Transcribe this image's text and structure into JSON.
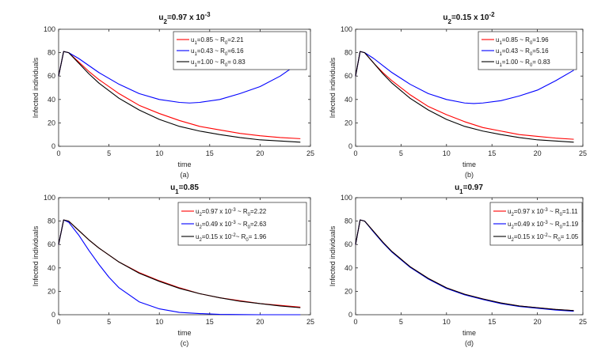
{
  "figure_caption_labels": [
    "(a)",
    "(b)",
    "(c)",
    "(d)"
  ],
  "chart_data": [
    {
      "type": "line",
      "panel_label": "(a)",
      "title": {
        "base": "u",
        "sub": "2",
        "rest": "=0.97 x 10",
        "sup": "-3"
      },
      "xlabel": "time",
      "ylabel": "Infected individuals",
      "xlim": [
        0,
        25
      ],
      "ylim": [
        0,
        100
      ],
      "xticks": [
        0,
        5,
        10,
        15,
        20,
        25
      ],
      "yticks": [
        0,
        20,
        40,
        60,
        80,
        100
      ],
      "grid": false,
      "legend_position": "top-right",
      "series": [
        {
          "color": "#ff0000",
          "legend": [
            [
              "u",
              ""
            ],
            [
              "1",
              "sub"
            ],
            [
              "=0.85 ~ R",
              ""
            ],
            [
              "0",
              "sub"
            ],
            [
              "=2.21",
              ""
            ]
          ],
          "x": [
            0,
            0.5,
            1,
            2,
            3,
            4,
            6,
            8,
            10,
            12,
            14,
            16,
            18,
            20,
            22,
            24
          ],
          "y": [
            60,
            81,
            80,
            72,
            64,
            57,
            45,
            35,
            28,
            22,
            17,
            14,
            11,
            9,
            7.5,
            6.5
          ]
        },
        {
          "color": "#0000ff",
          "legend": [
            [
              "u",
              ""
            ],
            [
              "1",
              "sub"
            ],
            [
              "=0.43 ~ R",
              ""
            ],
            [
              "0",
              "sub"
            ],
            [
              "=6.16",
              ""
            ]
          ],
          "x": [
            0,
            0.5,
            1,
            2,
            3,
            4,
            6,
            8,
            10,
            12,
            13,
            14,
            16,
            18,
            20,
            22,
            24
          ],
          "y": [
            60,
            81,
            80,
            75,
            69,
            63,
            53,
            45,
            40,
            37.5,
            37,
            37.5,
            40,
            45,
            51,
            60,
            72
          ]
        },
        {
          "color": "#000000",
          "legend": [
            [
              "u",
              ""
            ],
            [
              "1",
              "sub"
            ],
            [
              "=1.00 ~ R",
              ""
            ],
            [
              "0",
              "sub"
            ],
            [
              "= 0.83",
              ""
            ]
          ],
          "x": [
            0,
            0.5,
            1,
            2,
            3,
            4,
            6,
            8,
            10,
            12,
            14,
            16,
            18,
            20,
            22,
            24
          ],
          "y": [
            60,
            81,
            80,
            71,
            62,
            54,
            41,
            31,
            23,
            17,
            13,
            10,
            7.5,
            5.5,
            4.5,
            3.5
          ]
        }
      ]
    },
    {
      "type": "line",
      "panel_label": "(b)",
      "title": {
        "base": "u",
        "sub": "2",
        "rest": "=0.15 x 10",
        "sup": "-2"
      },
      "xlabel": "time",
      "ylabel": "Infected individuals",
      "xlim": [
        0,
        25
      ],
      "ylim": [
        0,
        100
      ],
      "xticks": [
        0,
        5,
        10,
        15,
        20,
        25
      ],
      "yticks": [
        0,
        20,
        40,
        60,
        80,
        100
      ],
      "grid": false,
      "legend_position": "top-right",
      "series": [
        {
          "color": "#ff0000",
          "legend": [
            [
              "u",
              ""
            ],
            [
              "1",
              "sub"
            ],
            [
              "=0.85 ~ R",
              ""
            ],
            [
              "0",
              "sub"
            ],
            [
              "=1.96",
              ""
            ]
          ],
          "x": [
            0,
            0.5,
            1,
            2,
            3,
            4,
            6,
            8,
            10,
            12,
            14,
            16,
            18,
            20,
            22,
            24
          ],
          "y": [
            60,
            81,
            80,
            71,
            63,
            56,
            44,
            34,
            27,
            21,
            16,
            13,
            10,
            8.5,
            7,
            6
          ]
        },
        {
          "color": "#0000ff",
          "legend": [
            [
              "u",
              ""
            ],
            [
              "1",
              "sub"
            ],
            [
              "=0.43 ~ R",
              ""
            ],
            [
              "0",
              "sub"
            ],
            [
              "=5.16",
              ""
            ]
          ],
          "x": [
            0,
            0.5,
            1,
            2,
            3,
            4,
            6,
            8,
            10,
            12,
            13,
            14,
            16,
            18,
            20,
            22,
            24
          ],
          "y": [
            60,
            81,
            80,
            75,
            69,
            63,
            53,
            45,
            40,
            37,
            36.5,
            37,
            39,
            43,
            48,
            56,
            65
          ]
        },
        {
          "color": "#000000",
          "legend": [
            [
              "u",
              ""
            ],
            [
              "1",
              "sub"
            ],
            [
              "=1.00 ~ R",
              ""
            ],
            [
              "0",
              "sub"
            ],
            [
              "= 0.83",
              ""
            ]
          ],
          "x": [
            0,
            0.5,
            1,
            2,
            3,
            4,
            6,
            8,
            10,
            12,
            14,
            16,
            18,
            20,
            22,
            24
          ],
          "y": [
            60,
            81,
            80,
            71,
            62,
            54,
            41,
            31,
            23,
            17,
            13,
            10,
            7.5,
            5.5,
            4.5,
            3.5
          ]
        }
      ]
    },
    {
      "type": "line",
      "panel_label": "(c)",
      "title": {
        "base": "u",
        "sub": "1",
        "rest": "=0.85",
        "sup": ""
      },
      "xlabel": "time",
      "ylabel": "Infected individuals",
      "xlim": [
        0,
        25
      ],
      "ylim": [
        0,
        100
      ],
      "xticks": [
        0,
        5,
        10,
        15,
        20,
        25
      ],
      "yticks": [
        0,
        20,
        40,
        60,
        80,
        100
      ],
      "grid": false,
      "legend_position": "top-right",
      "series": [
        {
          "color": "#ff0000",
          "legend": [
            [
              "u",
              ""
            ],
            [
              "2",
              "sub"
            ],
            [
              "=0.97 x 10",
              ""
            ],
            [
              "-3",
              "sup"
            ],
            [
              " ~ R",
              ""
            ],
            [
              "0",
              "sub"
            ],
            [
              "=2.22",
              ""
            ]
          ],
          "x": [
            0,
            0.5,
            1,
            2,
            3,
            4,
            6,
            8,
            10,
            12,
            14,
            16,
            18,
            20,
            22,
            24
          ],
          "y": [
            60,
            81,
            80,
            72,
            64,
            57,
            45,
            36,
            29,
            23,
            18,
            14.5,
            12,
            9.5,
            8,
            6.5
          ]
        },
        {
          "color": "#0000ff",
          "legend": [
            [
              "u",
              ""
            ],
            [
              "2",
              "sub"
            ],
            [
              "=0.49 x 10",
              ""
            ],
            [
              "-3",
              "sup"
            ],
            [
              " ~ R",
              ""
            ],
            [
              "0",
              "sub"
            ],
            [
              "=2.63",
              ""
            ]
          ],
          "x": [
            0,
            0.5,
            1,
            2,
            3,
            4,
            5,
            6,
            8,
            10,
            12,
            14,
            16,
            18,
            20,
            22,
            24
          ],
          "y": [
            60,
            81,
            79,
            68,
            55,
            43,
            32,
            23,
            11,
            5,
            2,
            1,
            0.3,
            0.1,
            0,
            0,
            0
          ]
        },
        {
          "color": "#000000",
          "legend": [
            [
              "u",
              ""
            ],
            [
              "2",
              "sub"
            ],
            [
              "=0.15 x 10",
              ""
            ],
            [
              "-2",
              "sup"
            ],
            [
              "~ R",
              ""
            ],
            [
              "0",
              "sub"
            ],
            [
              "= 1.96",
              ""
            ]
          ],
          "x": [
            0,
            0.5,
            1,
            2,
            3,
            4,
            6,
            8,
            10,
            12,
            14,
            16,
            18,
            20,
            22,
            24
          ],
          "y": [
            60,
            81,
            80,
            72,
            64,
            57,
            45,
            35.5,
            28.5,
            22.5,
            18,
            14.5,
            11.5,
            9.5,
            7.5,
            6
          ]
        }
      ]
    },
    {
      "type": "line",
      "panel_label": "(d)",
      "title": {
        "base": "u",
        "sub": "1",
        "rest": "=0.97",
        "sup": ""
      },
      "xlabel": "time",
      "ylabel": "Infected individuals",
      "xlim": [
        0,
        25
      ],
      "ylim": [
        0,
        100
      ],
      "xticks": [
        0,
        5,
        10,
        15,
        20,
        25
      ],
      "yticks": [
        0,
        20,
        40,
        60,
        80,
        100
      ],
      "grid": false,
      "legend_position": "top-right",
      "series": [
        {
          "color": "#ff0000",
          "legend": [
            [
              "u",
              ""
            ],
            [
              "2",
              "sub"
            ],
            [
              "=0.97 x 10",
              ""
            ],
            [
              "-3",
              "sup"
            ],
            [
              " ~ R",
              ""
            ],
            [
              "0",
              "sub"
            ],
            [
              "=1.11",
              ""
            ]
          ],
          "x": [
            0,
            0.5,
            1,
            2,
            3,
            4,
            6,
            8,
            10,
            12,
            14,
            16,
            18,
            20,
            22,
            24
          ],
          "y": [
            60,
            81,
            80,
            71,
            62,
            54,
            41,
            31,
            23,
            17.5,
            13.5,
            10,
            7.5,
            6,
            4.5,
            3.5
          ]
        },
        {
          "color": "#0000ff",
          "legend": [
            [
              "u",
              ""
            ],
            [
              "2",
              "sub"
            ],
            [
              "=0.49 x 10",
              ""
            ],
            [
              "-3",
              "sup"
            ],
            [
              " ~ R",
              ""
            ],
            [
              "0",
              "sub"
            ],
            [
              "=1.19",
              ""
            ]
          ],
          "x": [
            0,
            0.5,
            1,
            2,
            3,
            4,
            6,
            8,
            10,
            12,
            14,
            16,
            18,
            20,
            22,
            24
          ],
          "y": [
            60,
            81,
            80,
            70.5,
            61.5,
            53.5,
            40.5,
            30.5,
            22.5,
            17,
            13,
            9.5,
            7,
            5.5,
            4,
            3
          ]
        },
        {
          "color": "#000000",
          "legend": [
            [
              "u",
              ""
            ],
            [
              "2",
              "sub"
            ],
            [
              "=0.15 x 10",
              ""
            ],
            [
              "-2",
              "sup"
            ],
            [
              "~ R",
              ""
            ],
            [
              "0",
              "sub"
            ],
            [
              "= 1.05",
              ""
            ]
          ],
          "x": [
            0,
            0.5,
            1,
            2,
            3,
            4,
            6,
            8,
            10,
            12,
            14,
            16,
            18,
            20,
            22,
            24
          ],
          "y": [
            60,
            81,
            80,
            71,
            62,
            54,
            41,
            31,
            23,
            17.5,
            13.5,
            10,
            7.5,
            6,
            4.5,
            3.5
          ]
        }
      ]
    }
  ]
}
